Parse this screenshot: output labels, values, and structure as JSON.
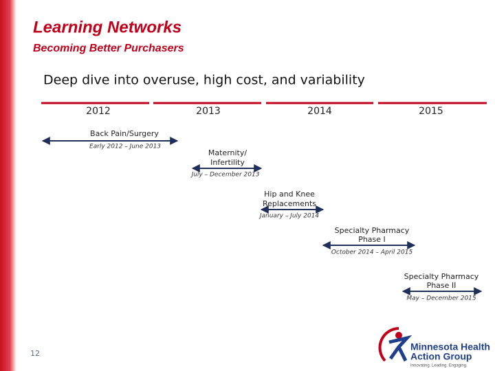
{
  "header": {
    "title": "Learning Networks",
    "subtitle": "Becoming Better Purchasers"
  },
  "heading": "Deep dive into overuse, high cost, and variability",
  "years": [
    "2012",
    "2013",
    "2014",
    "2015"
  ],
  "items": [
    {
      "label_lines": [
        "Back Pain/Surgery"
      ],
      "dates": "Early 2012 – June 2013"
    },
    {
      "label_lines": [
        "Maternity/",
        "Infertility"
      ],
      "dates": "July – December 2013"
    },
    {
      "label_lines": [
        "Hip and Knee",
        "Replacements"
      ],
      "dates": "January – July 2014"
    },
    {
      "label_lines": [
        "Specialty Pharmacy",
        "Phase I"
      ],
      "dates": "October 2014 – April 2015"
    },
    {
      "label_lines": [
        "Specialty Pharmacy",
        "Phase II"
      ],
      "dates": "May – December 2015"
    }
  ],
  "page_number": "12",
  "logo": {
    "line1": "Minnesota Health",
    "line2": "Action Group",
    "tagline": "Innovating. Leading. Engaging."
  }
}
